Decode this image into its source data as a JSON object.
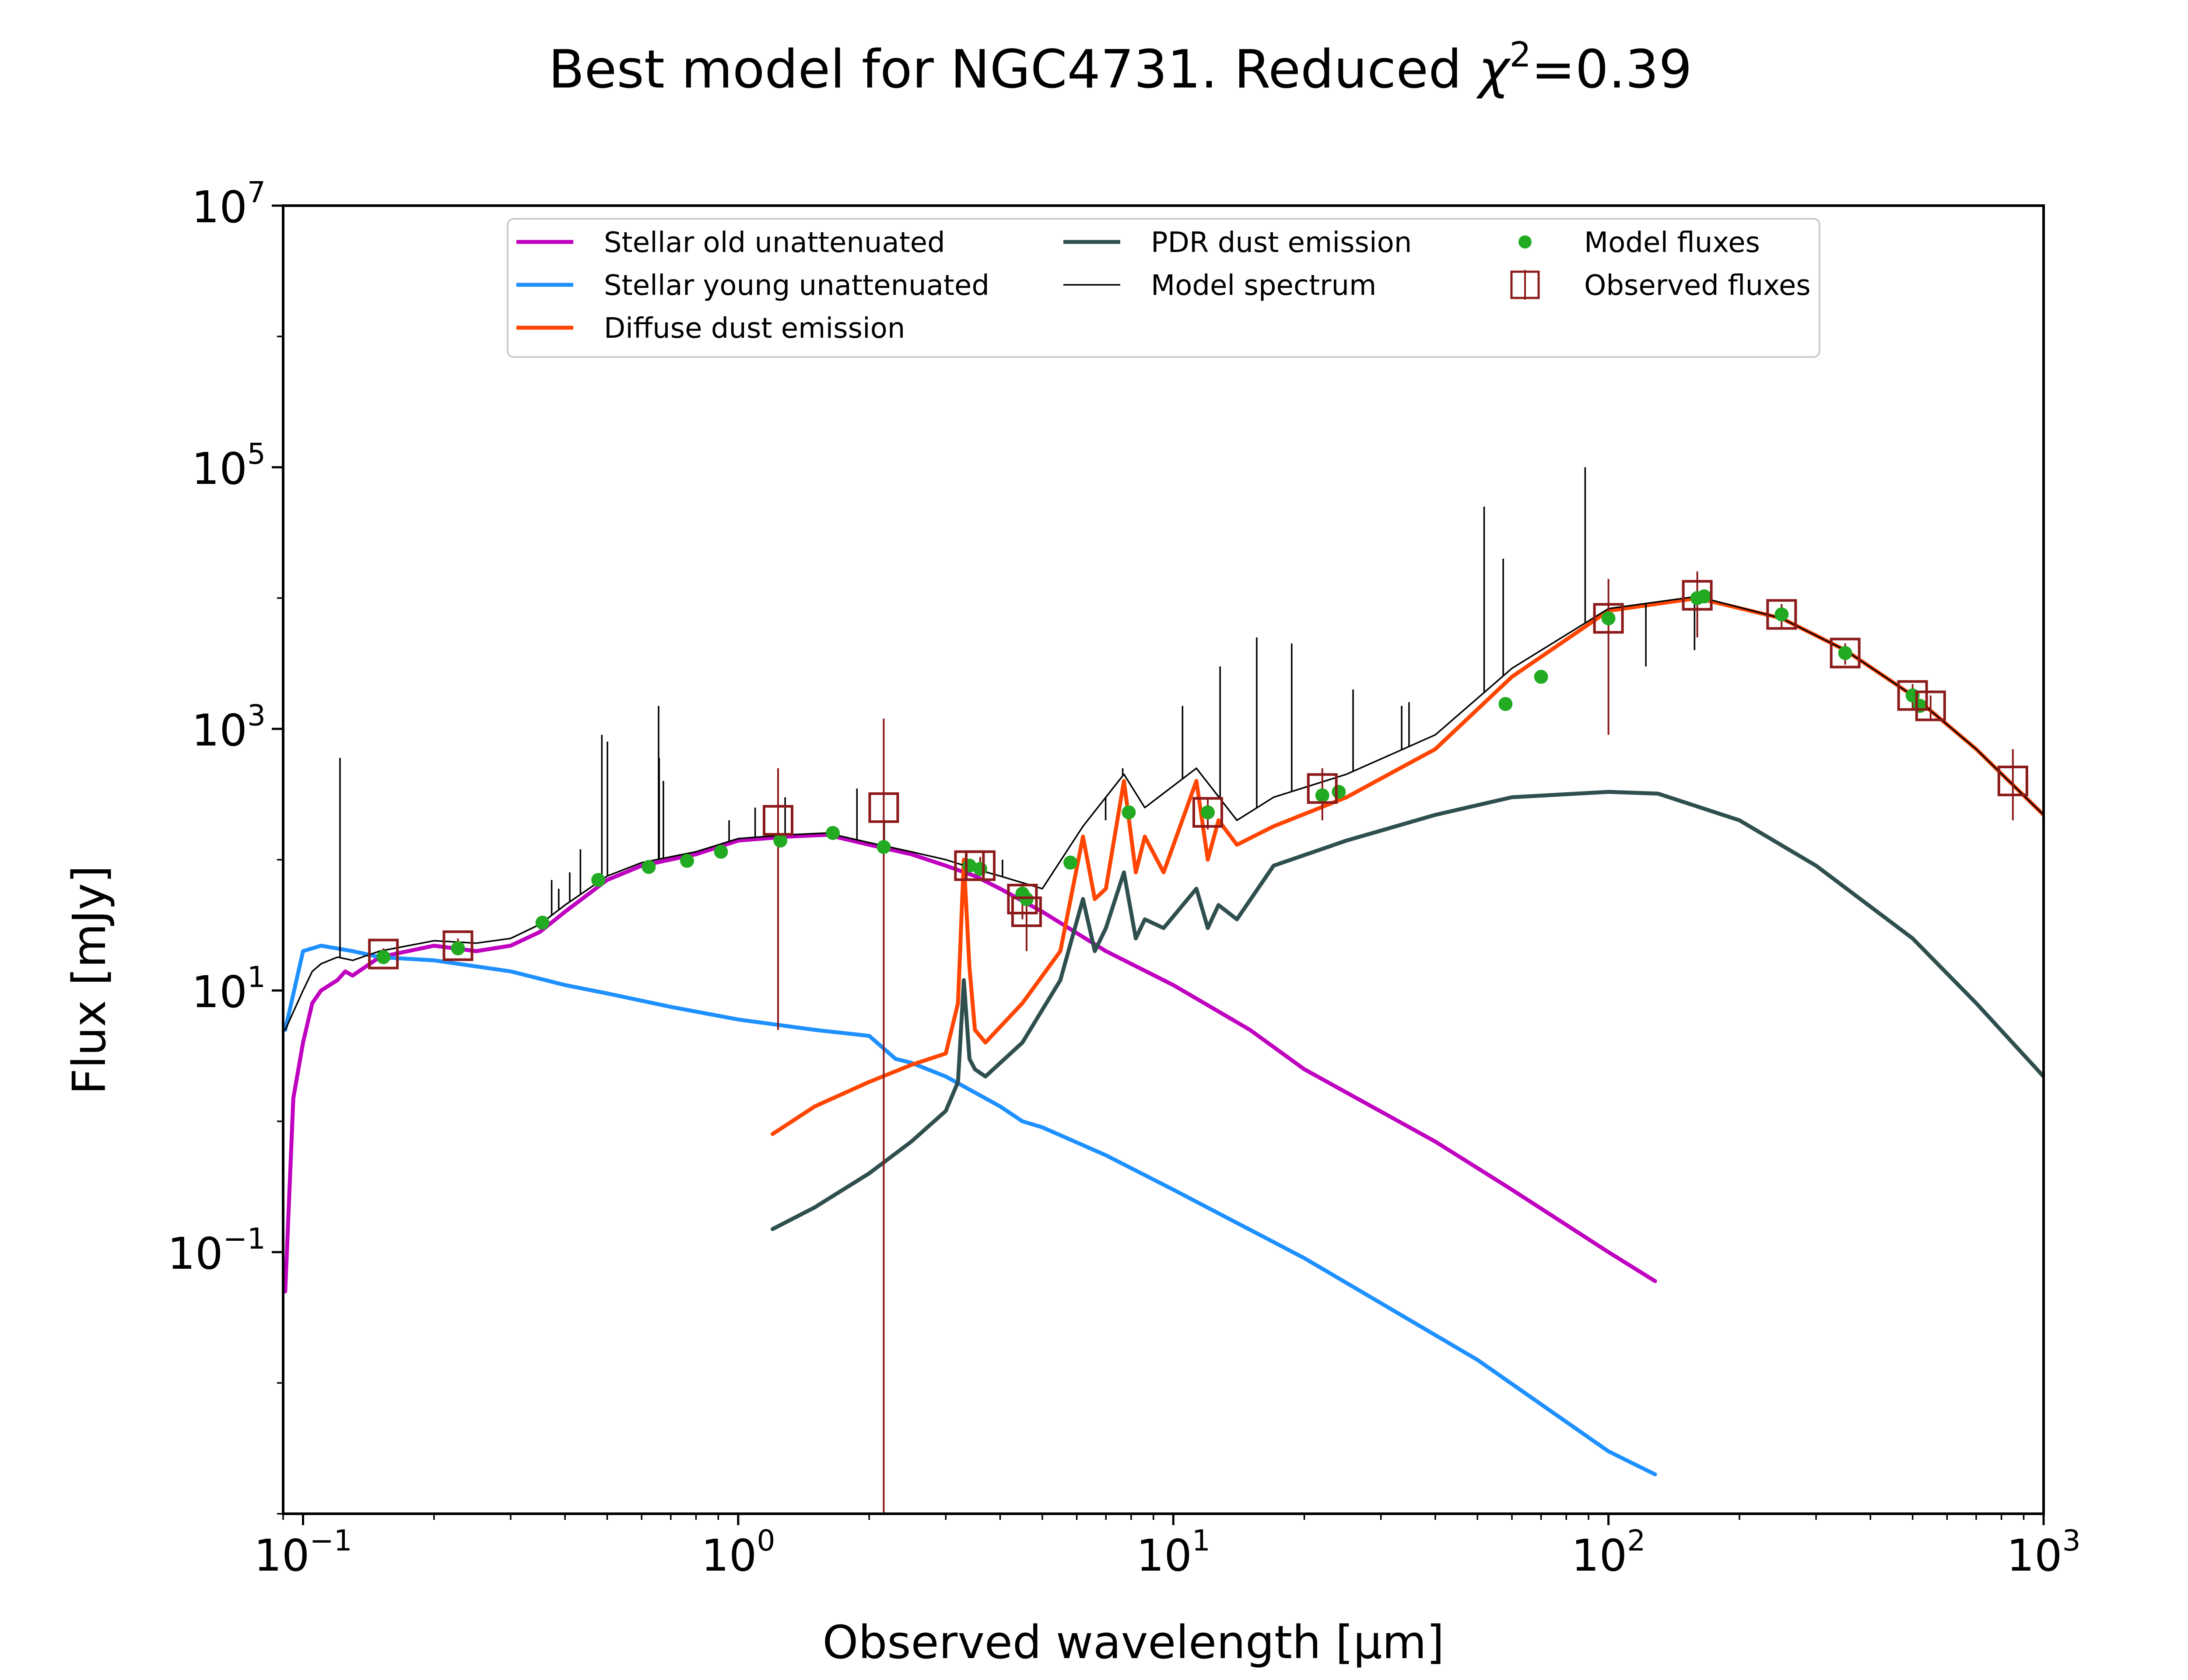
{
  "chart_data": {
    "type": "line",
    "title": "Best model for NGC4731. Reduced χ²=0.39",
    "title_parts": {
      "main": "Best model for NGC4731. Reduced ",
      "chi": "χ",
      "sup": "2",
      "tail": "=0.39"
    },
    "xlabel": "Observed wavelength [μm]",
    "ylabel": "Flux [mJy]",
    "xscale": "log",
    "yscale": "log",
    "xlim": [
      0.09,
      1000
    ],
    "ylim": [
      0.001,
      10000000
    ],
    "x_ticks": [
      {
        "value": 0.1,
        "base": "10",
        "exp": "−1"
      },
      {
        "value": 1,
        "base": "10",
        "exp": "0"
      },
      {
        "value": 10,
        "base": "10",
        "exp": "1"
      },
      {
        "value": 100,
        "base": "10",
        "exp": "2"
      },
      {
        "value": 1000,
        "base": "10",
        "exp": "3"
      }
    ],
    "y_ticks": [
      {
        "value": 0.1,
        "base": "10",
        "exp": "−1"
      },
      {
        "value": 10,
        "base": "10",
        "exp": "1"
      },
      {
        "value": 1000,
        "base": "10",
        "exp": "3"
      },
      {
        "value": 100000,
        "base": "10",
        "exp": "5"
      },
      {
        "value": 10000000,
        "base": "10",
        "exp": "7"
      }
    ],
    "legend_position": "upper center",
    "grid": false,
    "series": [
      {
        "name": "Stellar old unattenuated",
        "kind": "line",
        "color": "#bf00bf",
        "x": [
          0.091,
          0.095,
          0.1,
          0.105,
          0.11,
          0.12,
          0.125,
          0.13,
          0.15,
          0.2,
          0.25,
          0.3,
          0.35,
          0.4,
          0.5,
          0.6,
          0.8,
          1.0,
          1.3,
          1.6,
          2.0,
          2.5,
          3.0,
          3.5,
          4.0,
          5.0,
          7.0,
          10,
          15,
          20,
          40,
          60,
          100,
          128
        ],
        "y": [
          0.05,
          1.5,
          4.0,
          8.0,
          10.0,
          12.0,
          14.0,
          13.0,
          18.0,
          22.0,
          20.0,
          22.0,
          28.0,
          40.0,
          70.0,
          90.0,
          110.0,
          140.0,
          150.0,
          155.0,
          130.0,
          110.0,
          90.0,
          75.0,
          60.0,
          40.0,
          20.0,
          11.0,
          5.0,
          2.5,
          0.7,
          0.3,
          0.1,
          0.06
        ]
      },
      {
        "name": "Stellar young unattenuated",
        "kind": "line",
        "color": "#1e90ff",
        "x": [
          0.091,
          0.1,
          0.11,
          0.13,
          0.15,
          0.2,
          0.3,
          0.4,
          0.5,
          0.7,
          1.0,
          1.5,
          2.0,
          2.3,
          2.5,
          3.0,
          4.0,
          4.5,
          5.0,
          7.0,
          10,
          20,
          50,
          100,
          128
        ],
        "y": [
          5.0,
          20.0,
          22.0,
          20.0,
          18.0,
          17.0,
          14.0,
          11.0,
          9.5,
          7.5,
          6.0,
          5.0,
          4.5,
          3.0,
          2.8,
          2.2,
          1.3,
          1.0,
          0.9,
          0.55,
          0.3,
          0.09,
          0.015,
          0.003,
          0.002
        ]
      },
      {
        "name": "Diffuse dust emission",
        "kind": "line",
        "color": "#ff4500",
        "x": [
          1.2,
          1.5,
          2.0,
          2.5,
          3.0,
          3.2,
          3.3,
          3.4,
          3.5,
          3.7,
          4.5,
          5.5,
          6.2,
          6.6,
          7.0,
          7.7,
          8.2,
          8.6,
          9.5,
          11.3,
          12.0,
          12.7,
          14,
          17,
          25,
          40,
          60,
          100,
          160,
          250,
          350,
          500,
          700,
          1000
        ],
        "y": [
          0.8,
          1.3,
          2.0,
          2.7,
          3.3,
          8.0,
          100.0,
          15.0,
          5.0,
          4.0,
          8.0,
          20.0,
          150.0,
          50.0,
          60.0,
          400.0,
          80.0,
          150.0,
          80.0,
          400.0,
          100.0,
          200.0,
          130.0,
          180.0,
          300.0,
          700.0,
          2500.0,
          8000.0,
          10000.0,
          7000.0,
          4000.0,
          1800.0,
          700.0,
          220.0
        ]
      },
      {
        "name": "PDR dust emission",
        "kind": "line",
        "color": "#2f4f4f",
        "x": [
          1.2,
          1.5,
          2.0,
          2.5,
          3.0,
          3.2,
          3.3,
          3.4,
          3.5,
          3.7,
          4.5,
          5.5,
          6.2,
          6.6,
          7.0,
          7.7,
          8.2,
          8.6,
          9.5,
          11.3,
          12.0,
          12.7,
          14,
          17,
          25,
          40,
          60,
          100,
          130,
          200,
          300,
          500,
          700,
          1000
        ],
        "y": [
          0.15,
          0.22,
          0.4,
          0.7,
          1.2,
          2.0,
          12.0,
          3.0,
          2.5,
          2.2,
          4.0,
          12.0,
          50.0,
          20.0,
          30.0,
          80.0,
          25.0,
          35.0,
          30.0,
          60.0,
          30.0,
          45.0,
          35.0,
          90.0,
          140.0,
          220.0,
          300.0,
          330.0,
          320.0,
          200.0,
          90.0,
          25.0,
          8.0,
          2.2
        ]
      },
      {
        "name": "Model spectrum",
        "kind": "line",
        "color": "#000000",
        "x": [
          0.091,
          0.1,
          0.105,
          0.11,
          0.12,
          0.13,
          0.15,
          0.2,
          0.25,
          0.3,
          0.35,
          0.4,
          0.5,
          0.6,
          0.8,
          1.0,
          1.3,
          1.6,
          2.0,
          2.5,
          3.0,
          3.5,
          4.0,
          5.0,
          6.2,
          7.7,
          8.6,
          11.3,
          14,
          17,
          25,
          40,
          60,
          100,
          160,
          250,
          350,
          500,
          700,
          1000
        ],
        "y": [
          5.0,
          10.0,
          14.0,
          16.0,
          18.0,
          17.0,
          20.0,
          24.0,
          23.0,
          25.0,
          32.0,
          45.0,
          75.0,
          95.0,
          115.0,
          145.0,
          155.0,
          160.0,
          135.0,
          115.0,
          100.0,
          85.0,
          75.0,
          60.0,
          180.0,
          450.0,
          250.0,
          500.0,
          200.0,
          300.0,
          450.0,
          900.0,
          2900.0,
          8300.0,
          10300.0,
          7000.0,
          4000.0,
          1800.0,
          700.0,
          220.0
        ]
      },
      {
        "name": "Model fluxes",
        "kind": "points",
        "color": "#22aa22",
        "x": [
          0.153,
          0.227,
          0.355,
          0.477,
          0.623,
          0.763,
          0.913,
          1.25,
          1.65,
          2.16,
          3.4,
          3.6,
          4.5,
          4.6,
          5.8,
          7.9,
          12,
          22,
          24,
          58,
          70,
          100,
          160,
          166,
          250,
          350,
          500,
          520
        ],
        "y": [
          18,
          21,
          33,
          70,
          88,
          98,
          115,
          140,
          160,
          125,
          90,
          85,
          55,
          50,
          95,
          230,
          230,
          310,
          330,
          1550,
          2500,
          7000,
          10000,
          10300,
          7500,
          3800,
          1800,
          1500
        ]
      },
      {
        "name": "Observed fluxes",
        "kind": "points-errorbars",
        "color": "#8b1a1a",
        "x": [
          0.153,
          0.227,
          1.235,
          2.16,
          3.4,
          3.6,
          4.5,
          4.6,
          12,
          22,
          100,
          160,
          250,
          350,
          500,
          550,
          850
        ],
        "y": [
          19,
          22,
          200,
          250,
          90,
          90,
          50,
          40,
          230,
          350,
          7000,
          10500,
          7500,
          3800,
          1800,
          1500,
          400
        ],
        "yerr_low": [
          17,
          19,
          5,
          0.001,
          80,
          75,
          35,
          20,
          170,
          200,
          900,
          5000,
          6000,
          3100,
          1400,
          1200,
          200
        ],
        "yerr_high": [
          21,
          25,
          500,
          1200,
          100,
          105,
          65,
          60,
          290,
          500,
          14000,
          16000,
          9000,
          4500,
          2200,
          1800,
          700
        ]
      }
    ],
    "emission_lines": {
      "color": "#000000",
      "x": [
        0.1216,
        0.3727,
        0.3869,
        0.4101,
        0.434,
        0.4861,
        0.5007,
        0.6563,
        0.6583,
        0.6731,
        0.9531,
        1.094,
        1.282,
        1.875,
        2.166,
        4.05,
        6.99,
        7.65,
        10.5,
        12.81,
        15.55,
        18.71,
        25.89,
        33.48,
        34.81,
        51.8,
        57.3,
        88.4,
        121.9,
        157.7
      ],
      "peak": [
        600,
        70,
        60,
        80,
        120,
        900,
        800,
        1500,
        600,
        400,
        200,
        250,
        300,
        350,
        200,
        100,
        200,
        500,
        1500,
        3000,
        5000,
        4500,
        2000,
        1500,
        1600,
        50000,
        20000,
        100000,
        3000,
        4000
      ]
    }
  }
}
